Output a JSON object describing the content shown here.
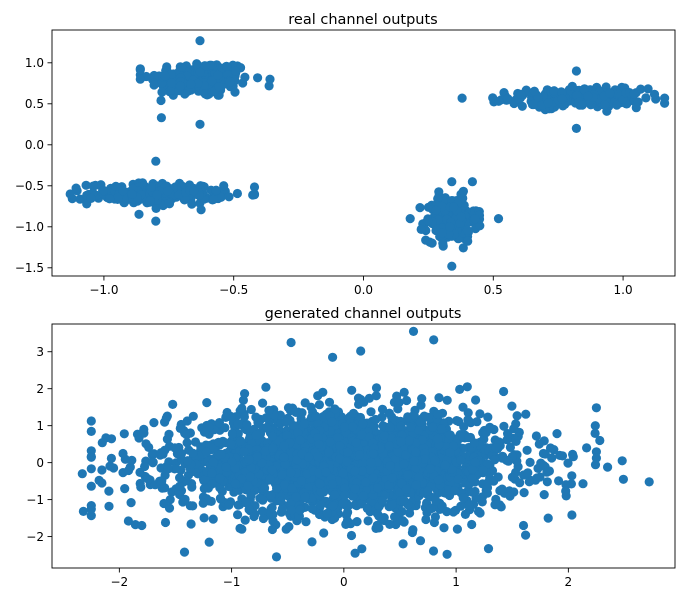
{
  "figure": {
    "background": "#ffffff"
  },
  "chart_data": [
    {
      "type": "scatter",
      "title": "real channel outputs",
      "xlabel": "",
      "ylabel": "",
      "xlim": [
        -1.2,
        1.2
      ],
      "ylim": [
        -1.6,
        1.4
      ],
      "xticks": [
        -1.0,
        -0.5,
        0.0,
        0.5,
        1.0
      ],
      "xtick_labels": [
        "−1.0",
        "−0.5",
        "0.0",
        "0.5",
        "1.0"
      ],
      "yticks": [
        1.0,
        0.5,
        0.0,
        -0.5,
        -1.0,
        -1.5
      ],
      "ytick_labels": [
        "1.0",
        "0.5",
        "0.0",
        "−0.5",
        "−1.0",
        "−1.5"
      ],
      "grid": false,
      "legend": "none",
      "color": "#1f77b4",
      "clusters": [
        {
          "center": [
            -0.63,
            0.8
          ],
          "spread": [
            0.12,
            0.14
          ],
          "count": 220,
          "range_x": [
            -0.86,
            -0.36
          ],
          "range_y": [
            0.25,
            1.27
          ]
        },
        {
          "center": [
            0.82,
            0.57
          ],
          "spread": [
            0.16,
            0.07
          ],
          "count": 240,
          "range_x": [
            0.38,
            1.16
          ],
          "range_y": [
            0.2,
            0.9
          ]
        },
        {
          "center": [
            -0.8,
            -0.6
          ],
          "spread": [
            0.16,
            0.08
          ],
          "count": 240,
          "range_x": [
            -1.13,
            -0.42
          ],
          "range_y": [
            -0.93,
            -0.2
          ]
        },
        {
          "center": [
            0.34,
            -0.9
          ],
          "spread": [
            0.06,
            0.17
          ],
          "count": 220,
          "range_x": [
            0.18,
            0.52
          ],
          "range_y": [
            -1.48,
            -0.45
          ]
        }
      ]
    },
    {
      "type": "scatter",
      "title": "generated channel outputs",
      "xlabel": "",
      "ylabel": "",
      "xlim": [
        -2.6,
        2.95
      ],
      "ylim": [
        -2.85,
        3.75
      ],
      "xticks": [
        -2,
        -1,
        0,
        1,
        2
      ],
      "xtick_labels": [
        "−2",
        "−1",
        "0",
        "1",
        "2"
      ],
      "yticks": [
        3,
        2,
        1,
        0,
        -1,
        -2
      ],
      "ytick_labels": [
        "3",
        "2",
        "1",
        "0",
        "−1",
        "−2"
      ],
      "grid": false,
      "legend": "none",
      "color": "#1f77b4",
      "distribution": {
        "center": [
          0,
          0
        ],
        "spread": [
          0.78,
          0.68
        ],
        "count": 2600
      },
      "outliers": [
        [
          -2.33,
          -0.3
        ],
        [
          -2.32,
          -1.32
        ],
        [
          -2.12,
          0.67
        ],
        [
          -2.18,
          -0.48
        ],
        [
          -1.8,
          -1.7
        ],
        [
          -1.42,
          -2.42
        ],
        [
          -0.47,
          3.25
        ],
        [
          0.62,
          3.55
        ],
        [
          0.8,
          3.32
        ],
        [
          0.15,
          3.02
        ],
        [
          -0.1,
          2.85
        ],
        [
          0.92,
          -2.48
        ],
        [
          2.24,
          1.0
        ],
        [
          2.28,
          0.6
        ],
        [
          2.48,
          0.05
        ],
        [
          2.49,
          -0.45
        ],
        [
          2.72,
          -0.52
        ],
        [
          2.13,
          -0.57
        ],
        [
          2.35,
          -0.12
        ],
        [
          1.6,
          -1.7
        ],
        [
          1.82,
          -1.5
        ],
        [
          -1.2,
          -2.15
        ],
        [
          -0.6,
          -2.55
        ],
        [
          0.1,
          -2.45
        ],
        [
          1.1,
          2.05
        ]
      ]
    }
  ]
}
